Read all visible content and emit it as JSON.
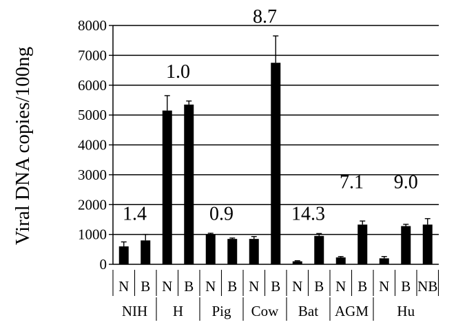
{
  "chart_data": {
    "type": "bar",
    "ylabel": "Viral DNA copies/100ng",
    "ylim": [
      0,
      8000
    ],
    "yticks": [
      0,
      1000,
      2000,
      3000,
      4000,
      5000,
      6000,
      7000,
      8000
    ],
    "ytick_labels": [
      "0",
      "1000",
      "2000",
      "3000",
      "4000",
      "5000",
      "6000",
      "7000",
      "8000"
    ],
    "grid": true,
    "categories": [
      "N",
      "B",
      "N",
      "B",
      "N",
      "B",
      "N",
      "B",
      "N",
      "B",
      "N",
      "B",
      "N",
      "B",
      "NB"
    ],
    "values": [
      600,
      800,
      5150,
      5350,
      1000,
      850,
      850,
      6750,
      100,
      950,
      230,
      1330,
      200,
      1280,
      1330
    ],
    "errors": [
      150,
      200,
      500,
      120,
      40,
      30,
      80,
      900,
      20,
      80,
      30,
      120,
      60,
      60,
      200
    ],
    "groups": [
      {
        "label": "NIH",
        "start": 0,
        "end": 1,
        "annotation": "1.4",
        "annotation_y": 1400
      },
      {
        "label": "H",
        "start": 2,
        "end": 3,
        "annotation": "1.0",
        "annotation_y": 6150
      },
      {
        "label": "Pig",
        "start": 4,
        "end": 5,
        "annotation": "0.9",
        "annotation_y": 1400
      },
      {
        "label": "Cow",
        "start": 6,
        "end": 7,
        "annotation": "8.7",
        "annotation_y": 8000
      },
      {
        "label": "Bat",
        "start": 8,
        "end": 9,
        "annotation": "14.3",
        "annotation_y": 1400
      },
      {
        "label": "AGM",
        "start": 10,
        "end": 11,
        "annotation": "7.1",
        "annotation_y": 2450
      },
      {
        "label": "Hu",
        "start": 12,
        "end": 14,
        "annotation": "9.0",
        "annotation_y": 2450
      }
    ],
    "colors": {
      "bar": "#000000",
      "grid": "#000000"
    }
  }
}
